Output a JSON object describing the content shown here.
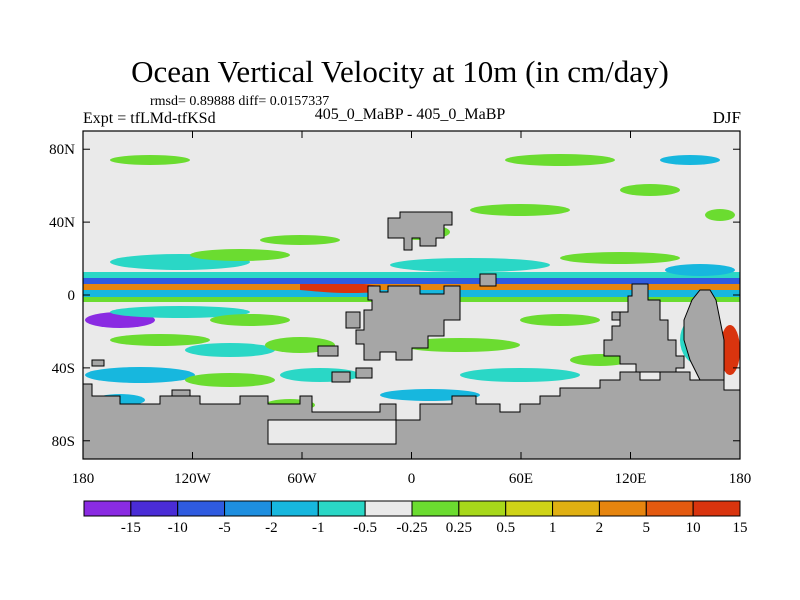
{
  "header": {
    "title": "Ocean Vertical Velocity at 10m (in cm/day)",
    "stats": "rmsd= 0.89888 diff= 0.0157337",
    "expt": "Expt = tfLMd-tfKSd",
    "case": "405_0_MaBP - 405_0_MaBP",
    "season": "DJF"
  },
  "chart_data": {
    "type": "heatmap",
    "title": "Ocean Vertical Velocity at 10m (in cm/day)",
    "xlabel": "",
    "ylabel": "",
    "xlim": [
      -180,
      180
    ],
    "ylim": [
      -90,
      90
    ],
    "x_ticks": [
      {
        "value": -180,
        "label": "180"
      },
      {
        "value": -120,
        "label": "120W"
      },
      {
        "value": -60,
        "label": "60W"
      },
      {
        "value": 0,
        "label": "0"
      },
      {
        "value": 60,
        "label": "60E"
      },
      {
        "value": 120,
        "label": "120E"
      },
      {
        "value": 180,
        "label": "180"
      }
    ],
    "y_ticks": [
      {
        "value": 80,
        "label": "80N"
      },
      {
        "value": 40,
        "label": "40N"
      },
      {
        "value": 0,
        "label": "0"
      },
      {
        "value": -40,
        "label": "40S"
      },
      {
        "value": -80,
        "label": "80S"
      }
    ],
    "colorbar": {
      "levels": [
        "-15",
        "-10",
        "-5",
        "-2",
        "-1",
        "-0.5",
        "-0.25",
        "0.25",
        "0.5",
        "1",
        "2",
        "5",
        "10",
        "15"
      ],
      "colors": [
        "#8a2be2",
        "#4a2cd6",
        "#2f5be0",
        "#1e8fe0",
        "#17b7de",
        "#2ad7c6",
        "#eaeaea",
        "#6bdc30",
        "#a7d81a",
        "#cfd317",
        "#e0b012",
        "#e6850f",
        "#e45a10",
        "#d9340e"
      ]
    },
    "land_color": "#a6a6a6",
    "bands": [
      {
        "lat": [
          -2,
          4
        ],
        "value": "10"
      },
      {
        "lat": [
          4,
          7
        ],
        "value": "-5"
      },
      {
        "lat": [
          -5,
          -2
        ],
        "value": "-2"
      }
    ]
  }
}
